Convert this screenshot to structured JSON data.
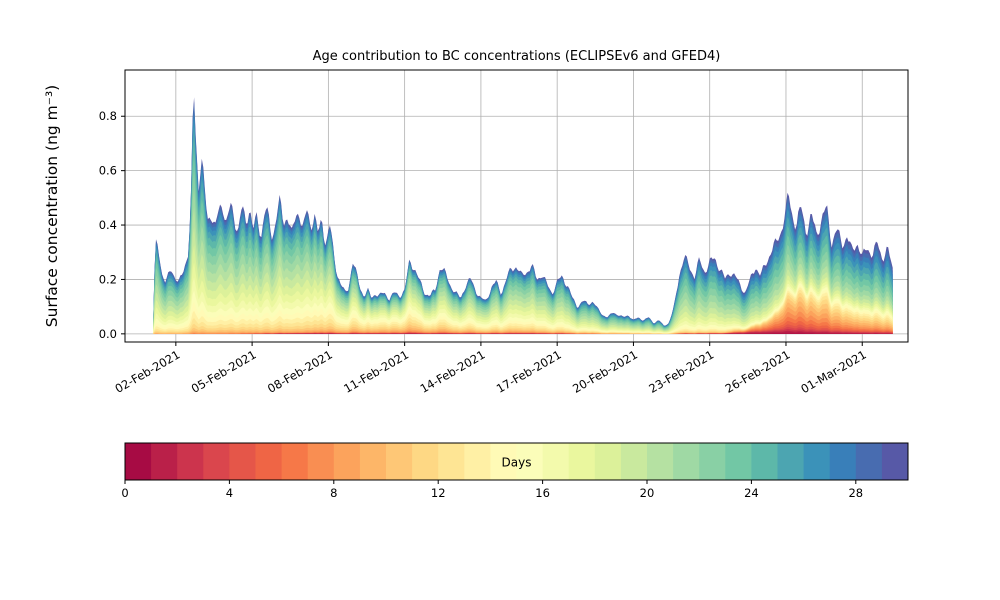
{
  "chart_data": {
    "type": "area",
    "stacked": true,
    "title": "Age contribution to BC concentrations (ECLIPSEv6 and GFED4)",
    "ylabel": "Surface concentration (ng m⁻³)",
    "xlabel": "",
    "grid": true,
    "x_units": "day of February 2021 (1 = 01-Feb-2021)",
    "xlim": [
      0,
      30.8
    ],
    "ylim": [
      -0.03,
      0.97
    ],
    "yticks": [
      0.0,
      0.2,
      0.4,
      0.6,
      0.8
    ],
    "xticks": [
      [
        2,
        "02-Feb-2021"
      ],
      [
        5,
        "05-Feb-2021"
      ],
      [
        8,
        "08-Feb-2021"
      ],
      [
        11,
        "11-Feb-2021"
      ],
      [
        14,
        "14-Feb-2021"
      ],
      [
        17,
        "17-Feb-2021"
      ],
      [
        20,
        "20-Feb-2021"
      ],
      [
        23,
        "23-Feb-2021"
      ],
      [
        26,
        "26-Feb-2021"
      ],
      [
        29,
        "01-Mar-2021"
      ]
    ],
    "n_age_bins": 30,
    "age_bin_unit": "days",
    "colormap": {
      "name": "Spectral",
      "anchors": [
        "#9e0142",
        "#d53e4f",
        "#f46d43",
        "#fdae61",
        "#fee08b",
        "#ffffbf",
        "#e6f598",
        "#abdda4",
        "#66c2a5",
        "#3288bd",
        "#5e4fa2"
      ]
    },
    "colorbar": {
      "label": "Days",
      "range": [
        0,
        30
      ],
      "ticks": [
        0,
        4,
        8,
        12,
        16,
        20,
        24,
        28
      ]
    },
    "grid_color": "#b0b0b0",
    "total_series": [
      [
        1.1,
        0.02
      ],
      [
        1.15,
        0.2
      ],
      [
        1.2,
        0.33
      ],
      [
        1.3,
        0.34
      ],
      [
        1.45,
        0.22
      ],
      [
        1.6,
        0.18
      ],
      [
        1.8,
        0.25
      ],
      [
        1.95,
        0.21
      ],
      [
        2.1,
        0.18
      ],
      [
        2.3,
        0.24
      ],
      [
        2.5,
        0.3
      ],
      [
        2.6,
        0.5
      ],
      [
        2.7,
        0.93
      ],
      [
        2.8,
        0.7
      ],
      [
        2.9,
        0.55
      ],
      [
        3.0,
        0.65
      ],
      [
        3.1,
        0.55
      ],
      [
        3.25,
        0.42
      ],
      [
        3.4,
        0.45
      ],
      [
        3.55,
        0.38
      ],
      [
        3.7,
        0.46
      ],
      [
        3.85,
        0.48
      ],
      [
        4.0,
        0.4
      ],
      [
        4.15,
        0.47
      ],
      [
        4.3,
        0.43
      ],
      [
        4.45,
        0.38
      ],
      [
        4.6,
        0.46
      ],
      [
        4.75,
        0.41
      ],
      [
        4.9,
        0.47
      ],
      [
        5.05,
        0.38
      ],
      [
        5.2,
        0.43
      ],
      [
        5.35,
        0.36
      ],
      [
        5.5,
        0.46
      ],
      [
        5.65,
        0.42
      ],
      [
        5.8,
        0.35
      ],
      [
        5.95,
        0.44
      ],
      [
        6.1,
        0.48
      ],
      [
        6.25,
        0.4
      ],
      [
        6.4,
        0.45
      ],
      [
        6.55,
        0.36
      ],
      [
        6.7,
        0.42
      ],
      [
        6.85,
        0.46
      ],
      [
        7.0,
        0.38
      ],
      [
        7.15,
        0.45
      ],
      [
        7.3,
        0.4
      ],
      [
        7.45,
        0.44
      ],
      [
        7.6,
        0.36
      ],
      [
        7.75,
        0.42
      ],
      [
        7.9,
        0.33
      ],
      [
        8.05,
        0.4
      ],
      [
        8.2,
        0.3
      ],
      [
        8.35,
        0.22
      ],
      [
        8.5,
        0.18
      ],
      [
        8.65,
        0.15
      ],
      [
        8.8,
        0.17
      ],
      [
        8.95,
        0.27
      ],
      [
        9.1,
        0.22
      ],
      [
        9.25,
        0.17
      ],
      [
        9.4,
        0.14
      ],
      [
        9.55,
        0.16
      ],
      [
        9.7,
        0.13
      ],
      [
        9.85,
        0.15
      ],
      [
        10.0,
        0.14
      ],
      [
        10.2,
        0.15
      ],
      [
        10.4,
        0.13
      ],
      [
        10.6,
        0.15
      ],
      [
        10.8,
        0.14
      ],
      [
        11.0,
        0.16
      ],
      [
        11.2,
        0.27
      ],
      [
        11.4,
        0.24
      ],
      [
        11.6,
        0.19
      ],
      [
        11.8,
        0.15
      ],
      [
        12.0,
        0.14
      ],
      [
        12.2,
        0.16
      ],
      [
        12.4,
        0.25
      ],
      [
        12.6,
        0.22
      ],
      [
        12.8,
        0.18
      ],
      [
        13.0,
        0.15
      ],
      [
        13.2,
        0.13
      ],
      [
        13.4,
        0.18
      ],
      [
        13.6,
        0.2
      ],
      [
        13.8,
        0.16
      ],
      [
        14.0,
        0.13
      ],
      [
        14.2,
        0.12
      ],
      [
        14.4,
        0.17
      ],
      [
        14.6,
        0.19
      ],
      [
        14.8,
        0.15
      ],
      [
        15.0,
        0.2
      ],
      [
        15.2,
        0.24
      ],
      [
        15.4,
        0.25
      ],
      [
        15.6,
        0.21
      ],
      [
        15.8,
        0.23
      ],
      [
        16.0,
        0.25
      ],
      [
        16.2,
        0.2
      ],
      [
        16.4,
        0.22
      ],
      [
        16.6,
        0.18
      ],
      [
        16.8,
        0.15
      ],
      [
        17.0,
        0.19
      ],
      [
        17.2,
        0.21
      ],
      [
        17.4,
        0.18
      ],
      [
        17.6,
        0.13
      ],
      [
        17.8,
        0.1
      ],
      [
        18.0,
        0.12
      ],
      [
        18.2,
        0.11
      ],
      [
        18.4,
        0.12
      ],
      [
        18.6,
        0.09
      ],
      [
        18.8,
        0.07
      ],
      [
        19.0,
        0.06
      ],
      [
        19.2,
        0.08
      ],
      [
        19.4,
        0.07
      ],
      [
        19.6,
        0.06
      ],
      [
        19.8,
        0.07
      ],
      [
        20.0,
        0.05
      ],
      [
        20.2,
        0.06
      ],
      [
        20.4,
        0.05
      ],
      [
        20.6,
        0.06
      ],
      [
        20.8,
        0.04
      ],
      [
        21.0,
        0.05
      ],
      [
        21.2,
        0.03
      ],
      [
        21.4,
        0.04
      ],
      [
        21.6,
        0.1
      ],
      [
        21.8,
        0.22
      ],
      [
        22.0,
        0.28
      ],
      [
        22.2,
        0.25
      ],
      [
        22.4,
        0.21
      ],
      [
        22.6,
        0.27
      ],
      [
        22.8,
        0.23
      ],
      [
        23.0,
        0.26
      ],
      [
        23.2,
        0.28
      ],
      [
        23.4,
        0.24
      ],
      [
        23.6,
        0.2
      ],
      [
        23.8,
        0.23
      ],
      [
        24.0,
        0.21
      ],
      [
        24.2,
        0.18
      ],
      [
        24.4,
        0.15
      ],
      [
        24.6,
        0.2
      ],
      [
        24.8,
        0.25
      ],
      [
        25.0,
        0.21
      ],
      [
        25.2,
        0.26
      ],
      [
        25.4,
        0.3
      ],
      [
        25.6,
        0.33
      ],
      [
        25.8,
        0.38
      ],
      [
        26.0,
        0.45
      ],
      [
        26.1,
        0.51
      ],
      [
        26.25,
        0.44
      ],
      [
        26.4,
        0.4
      ],
      [
        26.6,
        0.46
      ],
      [
        26.8,
        0.38
      ],
      [
        27.0,
        0.43
      ],
      [
        27.2,
        0.37
      ],
      [
        27.4,
        0.42
      ],
      [
        27.6,
        0.46
      ],
      [
        27.8,
        0.34
      ],
      [
        28.0,
        0.38
      ],
      [
        28.2,
        0.33
      ],
      [
        28.4,
        0.36
      ],
      [
        28.6,
        0.3
      ],
      [
        28.8,
        0.34
      ],
      [
        29.0,
        0.28
      ],
      [
        29.2,
        0.32
      ],
      [
        29.4,
        0.29
      ],
      [
        29.6,
        0.33
      ],
      [
        29.8,
        0.28
      ],
      [
        30.0,
        0.31
      ],
      [
        30.2,
        0.24
      ]
    ],
    "age_profile": [
      {
        "t": 1.1,
        "old_mean": 21,
        "old_sigma": 4.5,
        "young_frac": 0.03,
        "young_mean": 13,
        "young_sigma": 2.0,
        "fresh_frac": 0.0
      },
      {
        "t": 4.0,
        "old_mean": 21,
        "old_sigma": 5.0,
        "young_frac": 0.05,
        "young_mean": 13,
        "young_sigma": 2.5,
        "fresh_frac": 0.0
      },
      {
        "t": 7.0,
        "old_mean": 20.5,
        "old_sigma": 5.0,
        "young_frac": 0.06,
        "young_mean": 13,
        "young_sigma": 2.5,
        "fresh_frac": 0.005
      },
      {
        "t": 9.0,
        "old_mean": 19.5,
        "old_sigma": 5.5,
        "young_frac": 0.1,
        "young_mean": 12,
        "young_sigma": 2.5,
        "fresh_frac": 0.01
      },
      {
        "t": 10.5,
        "old_mean": 19,
        "old_sigma": 5.5,
        "young_frac": 0.15,
        "young_mean": 11.5,
        "young_sigma": 2.5,
        "fresh_frac": 0.015
      },
      {
        "t": 12.0,
        "old_mean": 19.5,
        "old_sigma": 5.5,
        "young_frac": 0.09,
        "young_mean": 11,
        "young_sigma": 2.5,
        "fresh_frac": 0.01
      },
      {
        "t": 14.0,
        "old_mean": 20,
        "old_sigma": 5.0,
        "young_frac": 0.07,
        "young_mean": 11,
        "young_sigma": 3.0,
        "fresh_frac": 0.01
      },
      {
        "t": 16.0,
        "old_mean": 20.5,
        "old_sigma": 5.0,
        "young_frac": 0.06,
        "young_mean": 11,
        "young_sigma": 3.0,
        "fresh_frac": 0.008
      },
      {
        "t": 18.0,
        "old_mean": 21,
        "old_sigma": 4.5,
        "young_frac": 0.05,
        "young_mean": 11,
        "young_sigma": 3.0,
        "fresh_frac": 0.005
      },
      {
        "t": 20.0,
        "old_mean": 21.5,
        "old_sigma": 4.5,
        "young_frac": 0.04,
        "young_mean": 11,
        "young_sigma": 3.0,
        "fresh_frac": 0.004
      },
      {
        "t": 21.7,
        "old_mean": 22,
        "old_sigma": 4.5,
        "young_frac": 0.03,
        "young_mean": 12,
        "young_sigma": 3.0,
        "fresh_frac": 0.004
      },
      {
        "t": 23.5,
        "old_mean": 22.5,
        "old_sigma": 4.5,
        "young_frac": 0.04,
        "young_mean": 12,
        "young_sigma": 3.0,
        "fresh_frac": 0.006
      },
      {
        "t": 24.5,
        "old_mean": 23,
        "old_sigma": 4.5,
        "young_frac": 0.08,
        "young_mean": 8,
        "young_sigma": 3.0,
        "fresh_frac": 0.03
      },
      {
        "t": 25.5,
        "old_mean": 23.5,
        "old_sigma": 4.5,
        "young_frac": 0.18,
        "young_mean": 8,
        "young_sigma": 3.0,
        "fresh_frac": 0.03
      },
      {
        "t": 26.5,
        "old_mean": 24,
        "old_sigma": 4.5,
        "young_frac": 0.36,
        "young_mean": 8.5,
        "young_sigma": 3.5,
        "fresh_frac": 0.02
      },
      {
        "t": 27.5,
        "old_mean": 24,
        "old_sigma": 4.5,
        "young_frac": 0.34,
        "young_mean": 9.5,
        "young_sigma": 3.5,
        "fresh_frac": 0.015
      },
      {
        "t": 28.5,
        "old_mean": 24.5,
        "old_sigma": 4.5,
        "young_frac": 0.3,
        "young_mean": 10.5,
        "young_sigma": 4.0,
        "fresh_frac": 0.01
      },
      {
        "t": 30.2,
        "old_mean": 25,
        "old_sigma": 4.5,
        "young_frac": 0.26,
        "young_mean": 11.5,
        "young_sigma": 4.0,
        "fresh_frac": 0.01
      }
    ],
    "fresh": {
      "mean": 1.5,
      "sigma": 1.2
    },
    "texture": {
      "amp1": 0.05,
      "freq1": 12.6,
      "amp2": 0.03,
      "freq2": 27.1
    }
  }
}
